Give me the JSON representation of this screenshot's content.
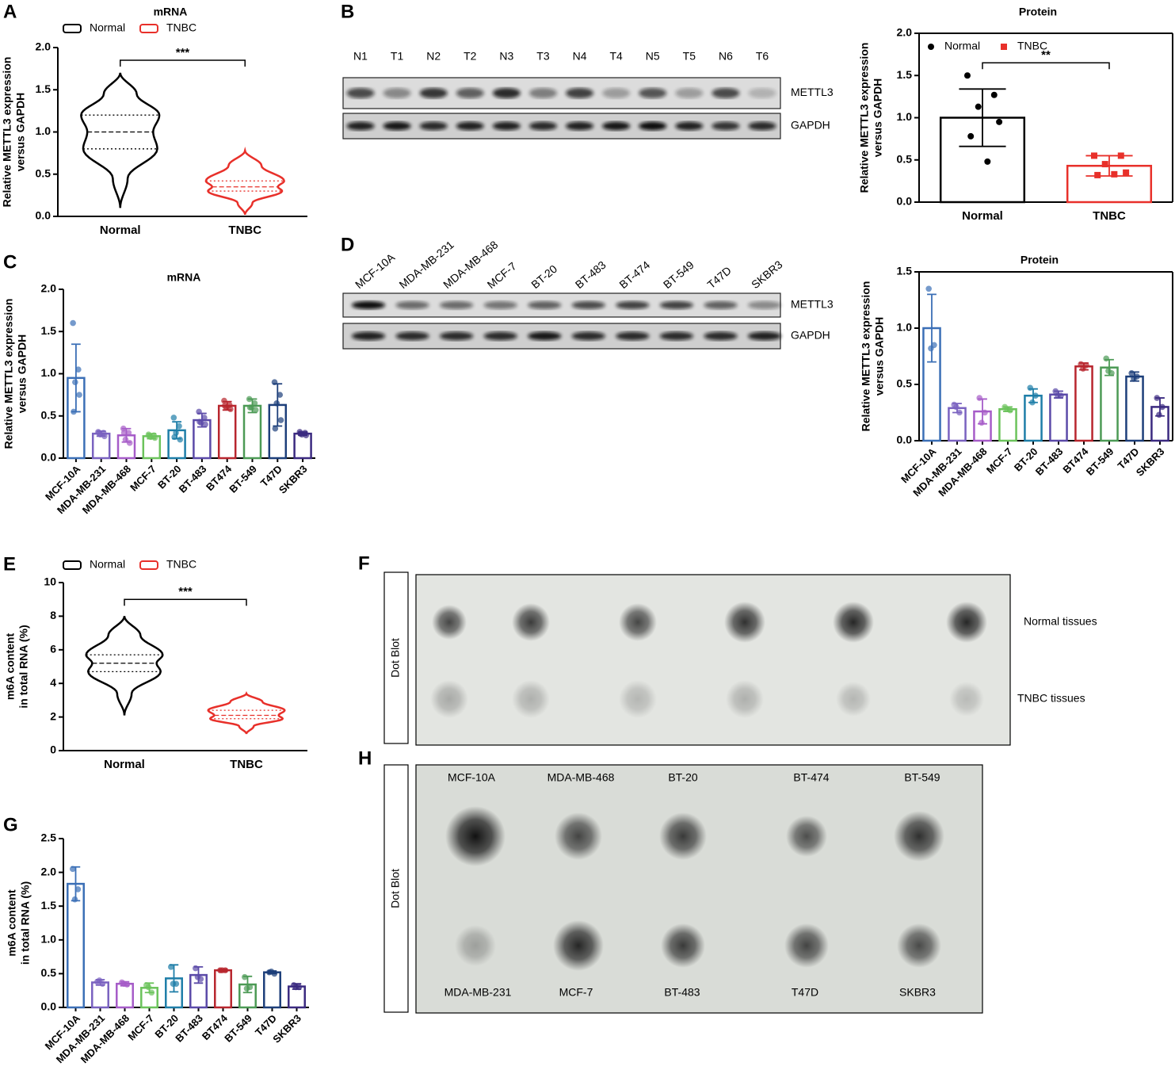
{
  "chart_data": [
    {
      "type": "violin",
      "panel": "A",
      "title": "mRNA",
      "ylabel": [
        "Relative METTL3 expression",
        "versus GAPDH"
      ],
      "categories": [
        "Normal",
        "TNBC"
      ],
      "series": [
        {
          "name": "Normal",
          "color": "#000000",
          "stats": {
            "min": 0.1,
            "q1": 0.8,
            "median": 1.0,
            "q3": 1.2,
            "max": 1.7
          }
        },
        {
          "name": "TNBC",
          "color": "#e8302a",
          "stats": {
            "min": 0.02,
            "q1": 0.3,
            "median": 0.35,
            "q3": 0.42,
            "max": 0.78
          }
        }
      ],
      "significance": "***",
      "ylim": [
        0,
        2
      ],
      "yticks": [
        {
          "value": 0,
          "label": "0.0"
        },
        0.5,
        {
          "value": 1,
          "label": "1.0"
        },
        1.5,
        {
          "value": 2,
          "label": "2.0"
        }
      ]
    },
    {
      "type": "bar",
      "title": "Protein",
      "ylabel": [
        "Relative METTL3 expression",
        "versus GAPDH"
      ],
      "categories": [
        "Normal",
        "TNBC"
      ],
      "values": [
        1.0,
        0.43
      ],
      "errors": [
        0.34,
        0.12
      ],
      "points": [
        [
          1.5,
          1.27,
          1.13,
          0.95,
          0.78,
          0.48
        ],
        [
          0.55,
          0.55,
          0.45,
          0.35,
          0.32,
          0.33
        ]
      ],
      "colors": [
        "#000000",
        "#e8302a"
      ],
      "legend": [
        {
          "name": "Normal",
          "color": "#000000",
          "marker": "circle"
        },
        {
          "name": "TNBC",
          "color": "#e8302a",
          "marker": "square"
        }
      ],
      "significance": "**",
      "ylim": [
        0,
        2
      ],
      "yticks": [
        {
          "value": 0,
          "label": "0.0"
        },
        0.5,
        {
          "value": 1,
          "label": "1.0"
        },
        1.5,
        {
          "value": 2,
          "label": "2.0"
        }
      ]
    },
    {
      "type": "bar",
      "panel": "C",
      "title": "mRNA",
      "ylabel": [
        "Relative METTL3 expression",
        "versus GAPDH"
      ],
      "categories": [
        "MCF-10A",
        "MDA-MB-231",
        "MDA-MB-468",
        "MCF-7",
        "BT-20",
        "BT-483",
        "BT474",
        "BT-549",
        "T47D",
        "SKBR3"
      ],
      "values": [
        0.95,
        0.29,
        0.27,
        0.26,
        0.33,
        0.45,
        0.62,
        0.62,
        0.63,
        0.29
      ],
      "errors": [
        0.4,
        0.03,
        0.08,
        0.03,
        0.1,
        0.08,
        0.05,
        0.08,
        0.25,
        0.02
      ],
      "points": [
        [
          1.6,
          1.05,
          0.9,
          0.75,
          0.55
        ],
        [
          0.31,
          0.3,
          0.28,
          0.26,
          0.3
        ],
        [
          0.35,
          0.3,
          0.22,
          0.18,
          0.3
        ],
        [
          0.28,
          0.27,
          0.25,
          0.24,
          0.26
        ],
        [
          0.48,
          0.38,
          0.3,
          0.22,
          0.25
        ],
        [
          0.55,
          0.48,
          0.42,
          0.4,
          0.43
        ],
        [
          0.68,
          0.63,
          0.6,
          0.58,
          0.62
        ],
        [
          0.7,
          0.65,
          0.6,
          0.57,
          0.6
        ],
        [
          0.9,
          0.75,
          0.65,
          0.45,
          0.35
        ],
        [
          0.31,
          0.3,
          0.28,
          0.27,
          0.29
        ]
      ],
      "colors": [
        "#3b6fb6",
        "#7a62c0",
        "#a65cc8",
        "#6cc35c",
        "#1e7ea8",
        "#5b4aa8",
        "#b8262e",
        "#4c9a55",
        "#1d3f7a",
        "#3b2a80"
      ],
      "ylim": [
        0,
        2
      ],
      "yticks": [
        {
          "value": 0,
          "label": "0.0"
        },
        0.5,
        {
          "value": 1,
          "label": "1.0"
        },
        1.5,
        {
          "value": 2,
          "label": "2.0"
        }
      ]
    },
    {
      "type": "bar",
      "title": "Protein",
      "ylabel": [
        "Relative METTL3 expression",
        "versus GAPDH"
      ],
      "categories": [
        "MCF-10A",
        "MDA-MB-231",
        "MDA-MB-468",
        "MCF-7",
        "BT-20",
        "BT-483",
        "BT474",
        "BT-549",
        "T47D",
        "SKBR3"
      ],
      "values": [
        1.0,
        0.29,
        0.26,
        0.28,
        0.4,
        0.41,
        0.66,
        0.65,
        0.57,
        0.3
      ],
      "errors": [
        0.3,
        0.04,
        0.11,
        0.02,
        0.06,
        0.03,
        0.03,
        0.07,
        0.04,
        0.08
      ],
      "points": [
        [
          1.35,
          0.85,
          0.82
        ],
        [
          0.32,
          0.25,
          0.3
        ],
        [
          0.38,
          0.25,
          0.16
        ],
        [
          0.3,
          0.27,
          0.28
        ],
        [
          0.47,
          0.4,
          0.34
        ],
        [
          0.44,
          0.4,
          0.4
        ],
        [
          0.68,
          0.67,
          0.64
        ],
        [
          0.73,
          0.6,
          0.62
        ],
        [
          0.6,
          0.57,
          0.55
        ],
        [
          0.38,
          0.3,
          0.23
        ]
      ],
      "colors": [
        "#3b6fb6",
        "#7a62c0",
        "#a65cc8",
        "#6cc35c",
        "#1e7ea8",
        "#5b4aa8",
        "#b8262e",
        "#4c9a55",
        "#1d3f7a",
        "#3b2a80"
      ],
      "ylim": [
        0,
        1.5
      ],
      "yticks": [
        {
          "value": 0,
          "label": "0.0"
        },
        0.5,
        {
          "value": 1,
          "label": "1.0"
        },
        1.5
      ]
    },
    {
      "type": "violin",
      "panel": "E",
      "ylabel": [
        "m6A content",
        "in total RNA (%)"
      ],
      "categories": [
        "Normal",
        "TNBC"
      ],
      "series": [
        {
          "name": "Normal",
          "color": "#000000",
          "stats": {
            "min": 2.1,
            "q1": 4.7,
            "median": 5.2,
            "q3": 5.7,
            "max": 8.0
          }
        },
        {
          "name": "TNBC",
          "color": "#e8302a",
          "stats": {
            "min": 1.0,
            "q1": 1.9,
            "median": 2.1,
            "q3": 2.4,
            "max": 3.4
          }
        }
      ],
      "significance": "***",
      "ylim": [
        0,
        10
      ],
      "yticks": [
        0,
        2,
        4,
        6,
        8,
        10
      ]
    },
    {
      "type": "bar",
      "panel": "G",
      "ylabel": [
        "m6A content",
        "in total RNA (%)"
      ],
      "categories": [
        "MCF-10A",
        "MDA-MB-231",
        "MDA-MB-468",
        "MCF-7",
        "BT-20",
        "BT-483",
        "BT474",
        "BT-549",
        "T47D",
        "SKBR3"
      ],
      "values": [
        1.83,
        0.37,
        0.35,
        0.29,
        0.43,
        0.48,
        0.55,
        0.34,
        0.52,
        0.31
      ],
      "errors": [
        0.25,
        0.04,
        0.03,
        0.07,
        0.2,
        0.12,
        0.02,
        0.12,
        0.02,
        0.04
      ],
      "points": [
        [
          2.05,
          1.75,
          1.6
        ],
        [
          0.38,
          0.35,
          0.4
        ],
        [
          0.37,
          0.34,
          0.35
        ],
        [
          0.33,
          0.22,
          0.3
        ],
        [
          0.6,
          0.35,
          0.35
        ],
        [
          0.58,
          0.42,
          0.45
        ],
        [
          0.55,
          0.55,
          0.55
        ],
        [
          0.45,
          0.3,
          0.28
        ],
        [
          0.52,
          0.5,
          0.53
        ],
        [
          0.33,
          0.3,
          0.3
        ]
      ],
      "colors": [
        "#3b6fb6",
        "#7a62c0",
        "#a65cc8",
        "#6cc35c",
        "#1e7ea8",
        "#5b4aa8",
        "#b8262e",
        "#4c9a55",
        "#1d3f7a",
        "#3b2a80"
      ],
      "ylim": [
        0,
        2.5
      ],
      "yticks": [
        {
          "value": 0,
          "label": "0.0"
        },
        0.5,
        {
          "value": 1,
          "label": "1.0"
        },
        1.5,
        {
          "value": 2,
          "label": "2.0"
        },
        2.5
      ]
    }
  ],
  "blots": [
    {
      "panel": "B",
      "lanes": [
        "N1",
        "T1",
        "N2",
        "T2",
        "N3",
        "T3",
        "N4",
        "T4",
        "N5",
        "T5",
        "N6",
        "T6"
      ],
      "rows": [
        "METTL3",
        "GAPDH"
      ]
    },
    {
      "panel": "D",
      "lanes": [
        "MCF-10A",
        "MDA-MB-231",
        "MDA-MB-468",
        "MCF-7",
        "BT-20",
        "BT-483",
        "BT-474",
        "BT-549",
        "T47D",
        "SKBR3"
      ],
      "rows": [
        "METTL3",
        "GAPDH"
      ]
    }
  ],
  "dot_blots": [
    {
      "panel": "F",
      "side_label": "Dot Blot",
      "row_labels": [
        "Normal tissues",
        "TNBC tissues"
      ]
    },
    {
      "panel": "H",
      "side_label": "Dot Blot",
      "top_labels": [
        "MCF-10A",
        "MDA-MB-468",
        "BT-20",
        "BT-474",
        "BT-549"
      ],
      "bottom_labels": [
        "MDA-MB-231",
        "MCF-7",
        "BT-483",
        "T47D",
        "SKBR3"
      ]
    }
  ]
}
